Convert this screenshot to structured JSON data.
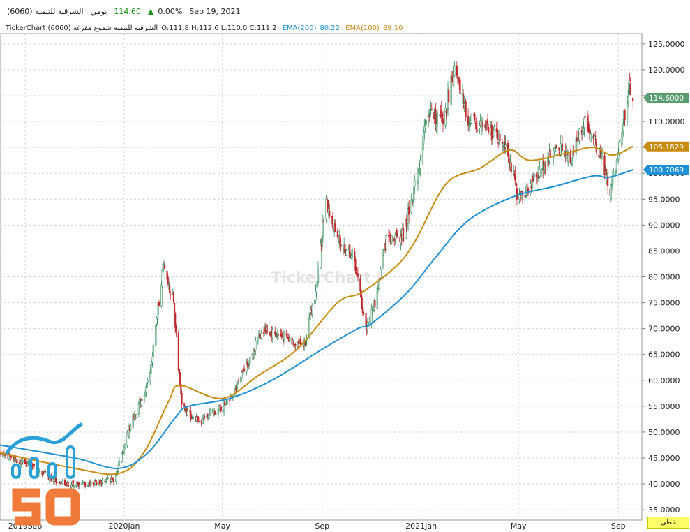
{
  "header": {
    "symbol_name": "الشرقية للتنمية (6060)",
    "period": "يومي",
    "last_price": "114.60",
    "change_pct": "0.00%",
    "date": "Sep 19, 2021"
  },
  "info": {
    "title": "TickerChart الشرقية للتنمية شموع مفرغة (6060)",
    "ohlc": "O:111.8 H:112.6 L:110.0 C:111.2",
    "ema200_label": "EMA(200)",
    "ema200_value": "80.22",
    "ema100_label": "EMA(100)",
    "ema100_value": "89.10"
  },
  "watermark": "TickerChart",
  "language_button": "خطي",
  "colors": {
    "up": "#2e8b57",
    "down": "#c0282d",
    "ema200": "#1e90d6",
    "ema100": "#c98b10",
    "last_price_tag": "#5a9e6f",
    "grid": "#d6d6d6"
  },
  "chart_data": {
    "type": "candlestick",
    "y_axis_side": "right",
    "ylim": [
      33,
      127
    ],
    "yticks": [
      "35.0000",
      "40.0000",
      "45.0000",
      "50.0000",
      "55.0000",
      "60.0000",
      "65.0000",
      "70.0000",
      "75.0000",
      "80.0000",
      "85.0000",
      "90.0000",
      "95.0000",
      "100.0000",
      "105.0000",
      "110.0000",
      "115.0000",
      "120.0000",
      "125.0000"
    ],
    "x_range": [
      "2019-08-01",
      "2021-09-30"
    ],
    "xticks": [
      {
        "date": "2019-09-01",
        "label": "2019Sep"
      },
      {
        "date": "2020-01-01",
        "label": "2020Jan"
      },
      {
        "date": "2020-05-01",
        "label": "May"
      },
      {
        "date": "2020-09-01",
        "label": "Sep"
      },
      {
        "date": "2021-01-01",
        "label": "2021Jan"
      },
      {
        "date": "2021-05-01",
        "label": "May"
      },
      {
        "date": "2021-09-01",
        "label": "Sep"
      }
    ],
    "price_keypoints": [
      [
        "2019-08-01",
        46
      ],
      [
        "2019-09-01",
        44
      ],
      [
        "2019-10-15",
        40
      ],
      [
        "2019-11-15",
        40
      ],
      [
        "2019-12-20",
        41
      ],
      [
        "2020-01-10",
        52
      ],
      [
        "2020-02-01",
        60
      ],
      [
        "2020-02-18",
        82
      ],
      [
        "2020-03-01",
        76
      ],
      [
        "2020-03-12",
        55
      ],
      [
        "2020-04-01",
        52
      ],
      [
        "2020-05-01",
        55
      ],
      [
        "2020-05-20",
        59
      ],
      [
        "2020-06-20",
        70
      ],
      [
        "2020-07-20",
        68
      ],
      [
        "2020-08-10",
        67
      ],
      [
        "2020-08-25",
        78
      ],
      [
        "2020-09-05",
        95
      ],
      [
        "2020-09-20",
        87
      ],
      [
        "2020-10-10",
        84
      ],
      [
        "2020-10-25",
        70
      ],
      [
        "2020-11-05",
        75
      ],
      [
        "2020-11-20",
        88
      ],
      [
        "2020-12-10",
        88
      ],
      [
        "2020-12-25",
        98
      ],
      [
        "2021-01-10",
        112
      ],
      [
        "2021-01-28",
        110
      ],
      [
        "2021-02-10",
        120
      ],
      [
        "2021-03-01",
        110
      ],
      [
        "2021-03-20",
        109
      ],
      [
        "2021-04-15",
        106
      ],
      [
        "2021-05-01",
        95
      ],
      [
        "2021-05-25",
        100
      ],
      [
        "2021-06-15",
        105
      ],
      [
        "2021-07-05",
        103
      ],
      [
        "2021-07-20",
        110
      ],
      [
        "2021-08-10",
        104
      ],
      [
        "2021-08-22",
        96
      ],
      [
        "2021-09-05",
        108
      ],
      [
        "2021-09-15",
        117
      ],
      [
        "2021-09-19",
        114.6
      ]
    ],
    "ema200": {
      "name": "EMA(200)",
      "points": [
        [
          "2019-08-01",
          47.5
        ],
        [
          "2019-11-01",
          45
        ],
        [
          "2019-12-25",
          43
        ],
        [
          "2020-01-30",
          46
        ],
        [
          "2020-03-05",
          53
        ],
        [
          "2020-03-20",
          55
        ],
        [
          "2020-05-10",
          56.5
        ],
        [
          "2020-07-01",
          60
        ],
        [
          "2020-09-01",
          66
        ],
        [
          "2020-10-15",
          70
        ],
        [
          "2020-11-01",
          71
        ],
        [
          "2020-12-15",
          77
        ],
        [
          "2021-01-20",
          84
        ],
        [
          "2021-03-01",
          91
        ],
        [
          "2021-04-25",
          95.5
        ],
        [
          "2021-06-15",
          97.5
        ],
        [
          "2021-08-01",
          99.5
        ],
        [
          "2021-08-20",
          99.2
        ],
        [
          "2021-09-19",
          100.7
        ]
      ]
    },
    "ema100": {
      "name": "EMA(100)",
      "points": [
        [
          "2019-08-01",
          46
        ],
        [
          "2019-11-01",
          43
        ],
        [
          "2019-12-25",
          42
        ],
        [
          "2020-01-25",
          46
        ],
        [
          "2020-02-25",
          56
        ],
        [
          "2020-03-10",
          59
        ],
        [
          "2020-05-01",
          56.5
        ],
        [
          "2020-06-15",
          61
        ],
        [
          "2020-08-01",
          66
        ],
        [
          "2020-09-20",
          75
        ],
        [
          "2020-10-20",
          77
        ],
        [
          "2020-12-01",
          82
        ],
        [
          "2020-12-25",
          87
        ],
        [
          "2021-02-01",
          98
        ],
        [
          "2021-03-15",
          101
        ],
        [
          "2021-04-20",
          104.5
        ],
        [
          "2021-05-15",
          102.5
        ],
        [
          "2021-07-01",
          104
        ],
        [
          "2021-08-01",
          105
        ],
        [
          "2021-08-25",
          103.5
        ],
        [
          "2021-09-19",
          105.2
        ]
      ]
    },
    "price_tags": [
      {
        "label": "114.6000",
        "value": 114.6,
        "color": "#5a9e6f"
      },
      {
        "label": "105.1829",
        "value": 105.1829,
        "color": "#c98b10"
      },
      {
        "label": "100.7069",
        "value": 100.7069,
        "color": "#1e90d6"
      }
    ]
  }
}
